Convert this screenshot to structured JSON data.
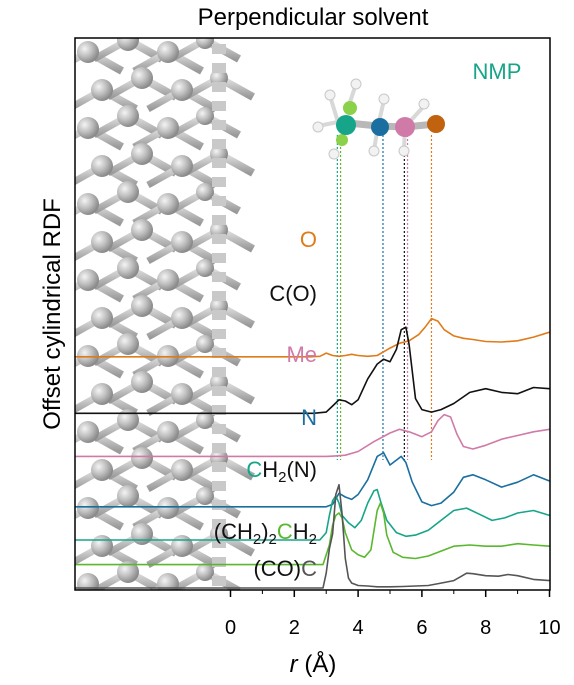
{
  "chart_data": {
    "type": "line",
    "title": "Perpendicular solvent",
    "xlabel_italic": "r",
    "xlabel_unit": " (Å)",
    "ylabel": "Offset cylindrical RDF",
    "annotation": "NMP",
    "annotation_color": "#17a589",
    "xlim": [
      -5,
      10
    ],
    "xticks": [
      0,
      2,
      4,
      6,
      8,
      10
    ],
    "grid": false,
    "legend": "none",
    "series": [
      {
        "name": "O",
        "color": "#e07b1a",
        "offset": 9.4,
        "x": [
          0,
          2.5,
          2.8,
          2.9,
          3.0,
          3.2,
          3.4,
          3.6,
          3.8,
          4.0,
          4.3,
          4.6,
          5.0,
          5.3,
          5.6,
          5.9,
          6.1,
          6.3,
          6.5,
          6.7,
          7.0,
          7.3,
          7.6,
          8.0,
          8.5,
          9.0,
          9.5,
          10.0
        ],
        "values": [
          0,
          0,
          0.02,
          0.08,
          0.15,
          0.05,
          0.02,
          0.05,
          0.1,
          0.05,
          0.02,
          0.05,
          0.35,
          0.55,
          0.65,
          0.9,
          1.2,
          1.55,
          1.45,
          1.1,
          0.85,
          0.75,
          0.7,
          0.62,
          0.6,
          0.65,
          0.8,
          1.0
        ]
      },
      {
        "name": "C(O)",
        "label": "C(O)",
        "color": "#111111",
        "offset": 7.1,
        "x": [
          0,
          2.6,
          3.0,
          3.2,
          3.4,
          3.6,
          3.8,
          4.0,
          4.3,
          4.6,
          4.8,
          5.0,
          5.2,
          5.35,
          5.5,
          5.6,
          5.8,
          6.0,
          6.3,
          6.6,
          7.0,
          7.5,
          8.0,
          8.5,
          9.0,
          9.5,
          10.0
        ],
        "values": [
          0,
          0,
          0.05,
          0.3,
          0.55,
          0.5,
          0.35,
          0.55,
          1.4,
          2.0,
          2.2,
          2.1,
          2.6,
          3.4,
          3.5,
          2.8,
          0.6,
          0.15,
          0.05,
          0.15,
          0.4,
          0.85,
          1.0,
          0.85,
          0.8,
          1.05,
          1.0
        ]
      },
      {
        "name": "Me",
        "color": "#d07aa8",
        "offset": 5.35,
        "x": [
          0,
          3.0,
          3.3,
          3.6,
          4.0,
          4.5,
          5.0,
          5.3,
          5.6,
          6.0,
          6.3,
          6.5,
          6.7,
          6.9,
          7.1,
          7.3,
          7.6,
          8.0,
          8.5,
          9.0,
          9.5,
          10.0
        ],
        "values": [
          0,
          0,
          0.02,
          0.05,
          0.2,
          0.6,
          0.95,
          1.1,
          1.0,
          0.8,
          1.0,
          1.45,
          1.7,
          1.6,
          0.9,
          0.4,
          0.3,
          0.45,
          0.7,
          0.85,
          1.0,
          1.1
        ]
      },
      {
        "name": "N",
        "color": "#1a6fa0",
        "offset": 3.3,
        "x": [
          0,
          3.0,
          3.2,
          3.4,
          3.6,
          3.8,
          4.0,
          4.3,
          4.6,
          4.8,
          5.0,
          5.2,
          5.35,
          5.5,
          5.7,
          6.0,
          6.3,
          6.6,
          7.0,
          7.3,
          7.6,
          8.0,
          8.5,
          9.0,
          9.5,
          10.0
        ],
        "values": [
          0,
          0,
          0.1,
          0.55,
          0.4,
          0.3,
          0.5,
          1.1,
          2.05,
          2.2,
          1.7,
          1.9,
          2.05,
          1.8,
          1.0,
          0.2,
          0.05,
          0.15,
          0.6,
          1.2,
          1.3,
          1.1,
          0.8,
          1.0,
          1.3,
          1.05
        ]
      },
      {
        "name": "CH2(N)",
        "color": "#17a589",
        "offset": 1.95,
        "x": [
          0,
          2.8,
          3.0,
          3.1,
          3.2,
          3.3,
          3.4,
          3.5,
          3.7,
          3.9,
          4.1,
          4.3,
          4.5,
          4.6,
          4.7,
          4.9,
          5.2,
          5.5,
          5.8,
          6.2,
          6.6,
          7.0,
          7.4,
          7.8,
          8.2,
          8.6,
          9.0,
          9.5,
          10.0
        ],
        "values": [
          0,
          0,
          0.3,
          1.0,
          1.6,
          1.8,
          1.5,
          1.0,
          0.7,
          0.5,
          0.8,
          1.5,
          2.0,
          2.05,
          1.6,
          0.8,
          0.3,
          0.15,
          0.2,
          0.4,
          0.8,
          1.2,
          1.3,
          1.05,
          0.8,
          0.9,
          1.1,
          1.2,
          1.0
        ]
      },
      {
        "name": "(CH2)2CH2",
        "color": "#5ab82e",
        "offset": 0.95,
        "x": [
          0,
          2.9,
          3.1,
          3.2,
          3.3,
          3.4,
          3.5,
          3.6,
          3.8,
          4.0,
          4.2,
          4.4,
          4.6,
          4.7,
          4.8,
          4.9,
          5.1,
          5.4,
          5.8,
          6.2,
          6.6,
          7.0,
          7.5,
          8.0,
          8.5,
          9.0,
          9.5,
          10.0
        ],
        "values": [
          0,
          0,
          0.8,
          1.6,
          2.0,
          2.1,
          1.9,
          1.3,
          0.6,
          0.4,
          0.3,
          0.6,
          2.2,
          2.5,
          2.1,
          1.2,
          0.5,
          0.3,
          0.25,
          0.35,
          0.55,
          0.75,
          0.8,
          0.75,
          0.75,
          0.85,
          0.8,
          0.75
        ]
      },
      {
        "name": "(CO)C",
        "color": "#555555",
        "offset": 0,
        "x": [
          0,
          2.9,
          3.0,
          3.1,
          3.2,
          3.3,
          3.4,
          3.5,
          3.6,
          3.7,
          3.8,
          3.9,
          4.0,
          4.3,
          4.6,
          5.0,
          5.4,
          5.8,
          6.2,
          6.6,
          7.0,
          7.2,
          7.4,
          7.6,
          8.0,
          8.4,
          8.7,
          9.0,
          9.5,
          10.0
        ],
        "values": [
          0,
          0,
          0.6,
          1.6,
          2.2,
          3.8,
          4.2,
          3.0,
          1.2,
          0.4,
          0.2,
          0.15,
          0.1,
          0.08,
          0.05,
          0.05,
          0.06,
          0.08,
          0.1,
          0.2,
          0.3,
          0.45,
          0.6,
          0.58,
          0.5,
          0.48,
          0.55,
          0.5,
          0.35,
          0.3
        ]
      }
    ],
    "guide_lines_x": [
      {
        "x": 3.35,
        "color": "#17a589"
      },
      {
        "x": 3.45,
        "color": "#5ab82e"
      },
      {
        "x": 4.78,
        "color": "#1a6fa0"
      },
      {
        "x": 5.45,
        "color": "#111111"
      },
      {
        "x": 5.55,
        "color": "#d07aa8"
      },
      {
        "x": 6.3,
        "color": "#e07b1a"
      }
    ]
  }
}
